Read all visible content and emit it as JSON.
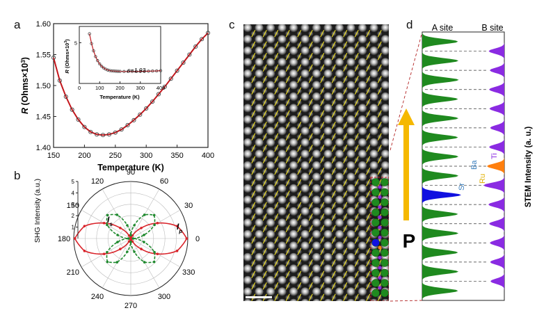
{
  "panels": {
    "a": "a",
    "b": "b",
    "c": "c",
    "d": "d"
  },
  "colors": {
    "resistance_curve": "#c4161c",
    "inset_fit": "#c4161c",
    "shg_ip": "#d9232a",
    "shg_is": "#1f8a2e",
    "a_site_peak": "#1f8a1f",
    "b_site_peak": "#8a2be2",
    "sr_peak": "#1010e0",
    "ru_peak": "#ff7f0e",
    "arrow_p": "#f5b800",
    "stem_arrows": "#f0e020",
    "dashed_red": "#b22222"
  },
  "chart_data": [
    {
      "type": "scatter",
      "panel": "a",
      "xlabel": "Temperature (K)",
      "ylabel_prefix": "R",
      "ylabel_unit": " (Ohms×10",
      "ylabel_exp": "3",
      "ylabel_close": ")",
      "xlim": [
        150,
        400
      ],
      "ylim": [
        1.4,
        1.6
      ],
      "xticks": [
        "150",
        "200",
        "250",
        "300",
        "350",
        "400"
      ],
      "yticks": [
        "1.40",
        "1.45",
        "1.50",
        "1.55",
        "1.60"
      ],
      "x": [
        150,
        160,
        170,
        180,
        190,
        200,
        210,
        220,
        230,
        240,
        250,
        260,
        270,
        280,
        290,
        300,
        310,
        320,
        330,
        340,
        350,
        360,
        370,
        380,
        390,
        400
      ],
      "y": [
        1.545,
        1.508,
        1.482,
        1.461,
        1.445,
        1.433,
        1.425,
        1.421,
        1.42,
        1.421,
        1.424,
        1.429,
        1.436,
        1.444,
        1.453,
        1.463,
        1.474,
        1.486,
        1.498,
        1.511,
        1.524,
        1.537,
        1.55,
        1.563,
        1.575,
        1.585
      ]
    },
    {
      "type": "scatter",
      "panel": "a-inset",
      "xlabel": "Temperature (K)",
      "ylabel_prefix": "R",
      "ylabel_unit": " (Ohms×10",
      "ylabel_exp": "3",
      "ylabel_close": ")",
      "annotation": "n=1.93",
      "xlim": [
        0,
        400
      ],
      "ylim": [
        0,
        7
      ],
      "xticks": [
        "0",
        "100",
        "200",
        "300",
        "400"
      ],
      "yticks": [
        "5"
      ],
      "x": [
        50,
        60,
        70,
        80,
        90,
        100,
        110,
        120,
        130,
        140,
        150,
        160,
        170,
        180,
        190,
        200,
        220,
        240,
        260,
        280,
        300,
        320,
        340,
        360,
        380,
        400
      ],
      "y": [
        6.1,
        4.9,
        4.0,
        3.3,
        2.8,
        2.4,
        2.1,
        1.9,
        1.75,
        1.65,
        1.58,
        1.54,
        1.52,
        1.5,
        1.49,
        1.48,
        1.47,
        1.47,
        1.47,
        1.47,
        1.48,
        1.49,
        1.5,
        1.52,
        1.54,
        1.57
      ]
    },
    {
      "type": "polar",
      "panel": "b",
      "ylabel": "SHG Intensity (a.u.)",
      "angle_labels": [
        "90",
        "60",
        "30",
        "0",
        "330",
        "300",
        "270",
        "240",
        "210",
        "180",
        "150",
        "120"
      ],
      "radial_ticks": [
        "1",
        "2",
        "3",
        "4",
        "5"
      ],
      "series": [
        {
          "name": "I",
          "sub": "p",
          "angles": [
            0,
            15,
            30,
            45,
            60,
            75,
            90,
            105,
            120,
            135,
            150,
            165,
            180,
            195,
            210,
            225,
            240,
            255,
            270,
            285,
            300,
            315,
            330,
            345
          ],
          "values": [
            4.9,
            4.2,
            2.7,
            1.3,
            0.3,
            0.1,
            0.3,
            0.1,
            0.3,
            1.3,
            2.7,
            4.2,
            4.9,
            4.2,
            2.7,
            1.3,
            0.3,
            0.1,
            0.3,
            0.1,
            0.3,
            1.3,
            2.7,
            4.2
          ]
        },
        {
          "name": "I",
          "sub": "s",
          "angles": [
            0,
            15,
            30,
            45,
            60,
            75,
            90,
            105,
            120,
            135,
            150,
            165,
            180,
            195,
            210,
            225,
            240,
            255,
            270,
            285,
            300,
            315,
            330,
            345
          ],
          "values": [
            0.2,
            1.2,
            2.4,
            2.9,
            2.4,
            1.2,
            0.3,
            1.2,
            2.4,
            2.9,
            2.4,
            1.2,
            0.2,
            1.2,
            2.4,
            2.9,
            2.4,
            1.2,
            0.3,
            1.2,
            2.4,
            2.9,
            2.4,
            1.2
          ]
        }
      ]
    },
    {
      "type": "area",
      "panel": "d",
      "ylabel": "STEM Intensity (a. u.)",
      "column_labels": [
        "A site",
        "B site"
      ],
      "a_site_peaks": [
        0.92,
        0.93,
        0.94,
        0.92,
        0.93,
        0.92,
        0.93,
        0.93,
        1.0,
        0.92,
        0.93,
        0.92,
        0.93,
        0.92
      ],
      "b_site_peaks": [
        0.45,
        0.42,
        0.44,
        0.43,
        0.41,
        0.44,
        0.5,
        0.6,
        0.46,
        0.44,
        0.42,
        0.41,
        0.4
      ],
      "highlight_labels": [
        "Sr",
        "Ba",
        "Ru",
        "Ti"
      ],
      "polarization_label": "P"
    }
  ],
  "scale_bar": ""
}
